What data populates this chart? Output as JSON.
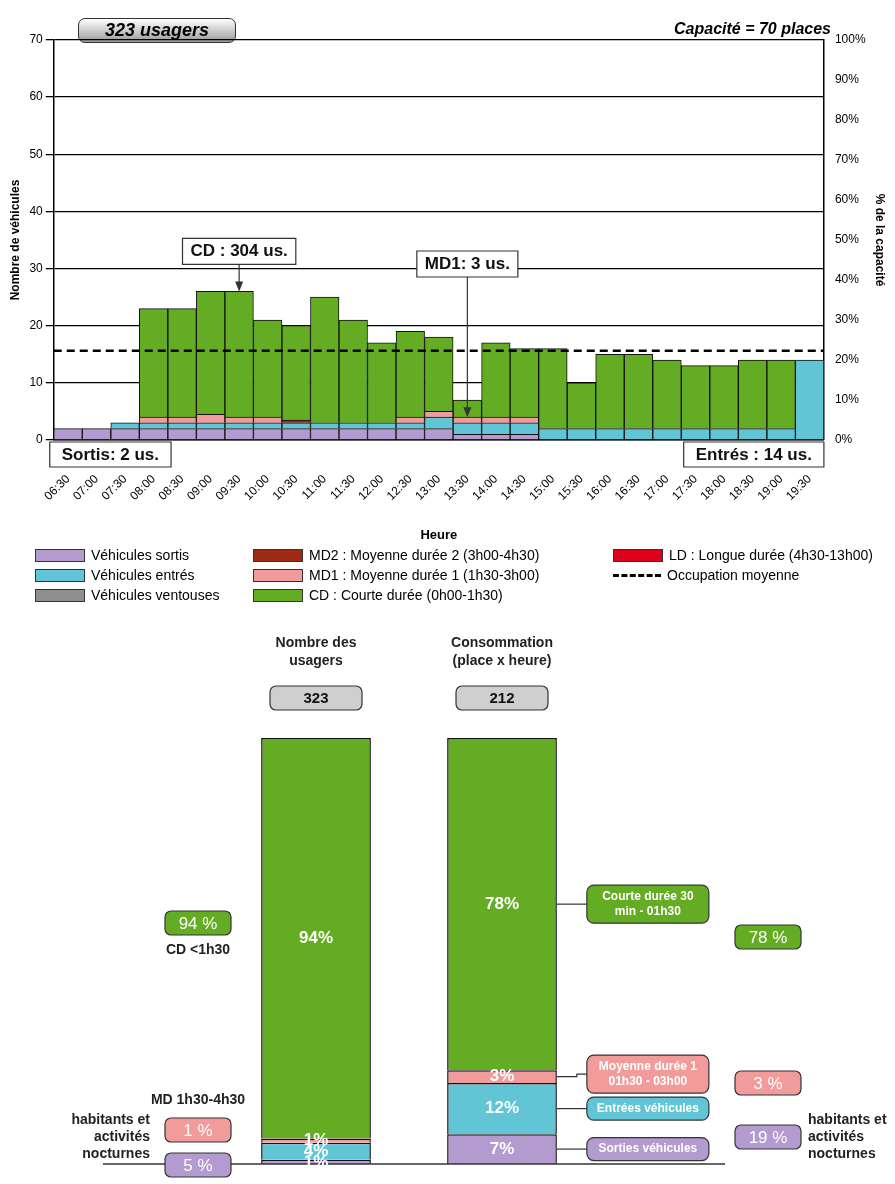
{
  "chart_data": [
    {
      "type": "bar",
      "title": "323 usagers",
      "subtitle": "Capacité = 70 places",
      "xlabel": "Heure",
      "ylabel": "Nombre de véhicules",
      "y2label": "% de la capacité",
      "categories": [
        "06:30",
        "07:00",
        "07:30",
        "08:00",
        "08:30",
        "09:00",
        "09:30",
        "10:00",
        "10:30",
        "11:00",
        "11:30",
        "12:00",
        "12:30",
        "13:00",
        "13:30",
        "14:00",
        "14:30",
        "15:00",
        "15:30",
        "16:00",
        "16:30",
        "17:00",
        "17:30",
        "18:00",
        "18:30",
        "19:00",
        "19:30"
      ],
      "stacked": true,
      "series": [
        {
          "name": "Véhicules sortis",
          "color": "#b39bd0",
          "values": [
            2,
            2,
            2,
            2,
            2,
            2,
            2,
            2,
            2,
            2,
            2,
            2,
            2,
            2,
            1,
            1,
            1,
            0,
            0,
            0,
            0,
            0,
            0,
            0,
            0,
            0,
            0
          ]
        },
        {
          "name": "Véhicules entrés",
          "color": "#62c5d6",
          "values": [
            0,
            0,
            1,
            1,
            1,
            1,
            1,
            1,
            1,
            1,
            1,
            1,
            1,
            2,
            2,
            2,
            2,
            2,
            2,
            2,
            2,
            2,
            2,
            2,
            2,
            2,
            14
          ]
        },
        {
          "name": "Véhicules ventouses",
          "color": "#8f8f8f",
          "values": [
            0,
            0,
            0,
            0,
            0,
            0,
            0,
            0,
            0,
            0,
            0,
            0,
            0,
            0,
            0,
            0,
            0,
            0,
            0,
            0,
            0,
            0,
            0,
            0,
            0,
            0,
            0
          ]
        },
        {
          "name": "MD2 : Moyenne durée 2 (3h00-4h30)",
          "color": "#9e2a14",
          "values": [
            0,
            0,
            0,
            0,
            0,
            0,
            0,
            0,
            0.5,
            0,
            0,
            0,
            0,
            0,
            0,
            0,
            0,
            0,
            0,
            0,
            0,
            0,
            0,
            0,
            0,
            0,
            0
          ]
        },
        {
          "name": "MD1 : Moyenne durée 1 (1h30-3h00)",
          "color": "#f29b9b",
          "values": [
            0,
            0,
            0,
            1,
            1,
            1.5,
            1,
            1,
            0,
            0,
            0,
            0,
            1,
            1,
            1,
            1,
            1,
            0,
            0,
            0,
            0,
            0,
            0,
            0,
            0,
            0,
            0
          ]
        },
        {
          "name": "CD : Courte durée (0h00-1h30)",
          "color": "#63ac23",
          "values": [
            0,
            0,
            0,
            19,
            19,
            21.5,
            22,
            17,
            16.5,
            22,
            18,
            14,
            15,
            13,
            3,
            13,
            12,
            14,
            8,
            13,
            13,
            12,
            11,
            11,
            12,
            12,
            0
          ]
        },
        {
          "name": "LD : Longue durée (4h30-13h00)",
          "color": "#e0001a",
          "values": [
            0,
            0,
            0,
            0,
            0,
            0,
            0,
            0,
            0,
            0,
            0,
            0,
            0,
            0,
            0,
            0,
            0,
            0,
            0,
            0,
            0,
            0,
            0,
            0,
            0,
            0,
            0
          ]
        }
      ],
      "ylim": [
        0,
        70
      ],
      "yticks": [
        0,
        10,
        20,
        30,
        40,
        50,
        60,
        70
      ],
      "y2lim": [
        0,
        100
      ],
      "y2ticks": [
        {
          "value": 0,
          "label": "0%"
        },
        {
          "value": 10,
          "label": "10%"
        },
        {
          "value": 20,
          "label": "20%"
        },
        {
          "value": 30,
          "label": "30%"
        },
        {
          "value": 40,
          "label": "40%"
        },
        {
          "value": 50,
          "label": "50%"
        },
        {
          "value": 60,
          "label": "60%"
        },
        {
          "value": 70,
          "label": "70%"
        },
        {
          "value": 80,
          "label": "80%"
        },
        {
          "value": 90,
          "label": "90%"
        },
        {
          "value": 100,
          "label": "100%"
        }
      ],
      "ref_lines": [
        {
          "axis": "y",
          "value": 15.6,
          "label": "Occupation moyenne",
          "color": "#000000",
          "line_style": "dashed"
        }
      ],
      "annotations": [
        {
          "text": "CD : 304 us.",
          "x": "09:30",
          "y": 26
        },
        {
          "text": "MD1: 3 us.",
          "x": "13:30",
          "y": 4
        },
        "Sortis: 2 us.",
        "Entrés : 14 us."
      ],
      "grid": "y",
      "legend": "bottom"
    },
    {
      "type": "bar",
      "categories": [
        "Nombre des usagers",
        "Consommation (place x heure)"
      ],
      "stacked": true,
      "series": [
        {
          "name": "Sorties véhicules",
          "color": "#b39bd0",
          "values": [
            1,
            7
          ],
          "value_labels": [
            "1%",
            "7%"
          ]
        },
        {
          "name": "Entrées véhicules",
          "color": "#62c5d6",
          "values": [
            4,
            12
          ],
          "value_labels": [
            "4%",
            "12%"
          ]
        },
        {
          "name": "Moyenne durée 1 01h30 - 03h00",
          "color": "#f29b9b",
          "values": [
            1,
            3
          ],
          "value_labels": [
            "1%",
            "3%"
          ]
        },
        {
          "name": "Courte durée 30 min - 01h30",
          "color": "#63ac23",
          "values": [
            94,
            78
          ],
          "value_labels": [
            "94%",
            "78%"
          ]
        }
      ],
      "ylim": [
        0,
        100
      ],
      "tick_labels": "x",
      "annotations": [
        "323",
        "212",
        "94 %",
        "CD <1h30",
        "MD 1h30-4h30",
        "1 %",
        "5 %",
        "habitants et activités nocturnes",
        "78 %",
        "3 %",
        "19 %",
        "habitants et activités nocturnes"
      ]
    }
  ]
}
